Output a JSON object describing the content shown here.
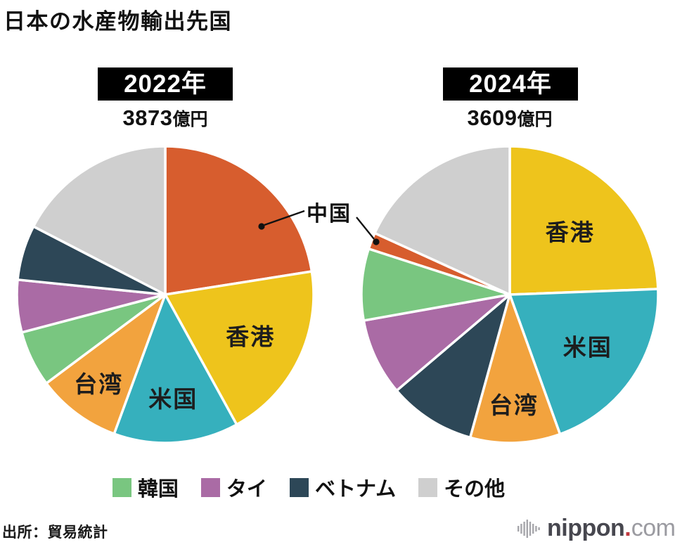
{
  "title": "日本の水産物輸出先国",
  "callout": {
    "label": "中国"
  },
  "chart_data": [
    {
      "type": "pie",
      "year_label": "2022年",
      "total_value": "3873",
      "total_unit": "億円",
      "start_angle_deg": 0,
      "direction": "clockwise",
      "slices": [
        {
          "label": "中国",
          "share_pct": 22.5,
          "color": "#d75d2e",
          "label_placement": "callout"
        },
        {
          "label": "香港",
          "share_pct": 19.5,
          "color": "#eec41c",
          "label_placement": "inside"
        },
        {
          "label": "米国",
          "share_pct": 13.6,
          "color": "#36b0bd",
          "label_placement": "inside"
        },
        {
          "label": "台湾",
          "share_pct": 9.2,
          "color": "#f2a33e",
          "label_placement": "inside"
        },
        {
          "label": "韓国",
          "share_pct": 6.1,
          "color": "#79c680",
          "label_placement": "legend"
        },
        {
          "label": "タイ",
          "share_pct": 5.7,
          "color": "#aa6ba5",
          "label_placement": "legend"
        },
        {
          "label": "ベトナム",
          "share_pct": 6.0,
          "color": "#2d4757",
          "label_placement": "legend"
        },
        {
          "label": "その他",
          "share_pct": 17.4,
          "color": "#cfcfcf",
          "label_placement": "legend"
        }
      ]
    },
    {
      "type": "pie",
      "year_label": "2024年",
      "total_value": "3609",
      "total_unit": "億円",
      "start_angle_deg": 0,
      "direction": "clockwise",
      "slices": [
        {
          "label": "香港",
          "share_pct": 24.4,
          "color": "#eec41c",
          "label_placement": "inside"
        },
        {
          "label": "米国",
          "share_pct": 20.1,
          "color": "#36b0bd",
          "label_placement": "inside"
        },
        {
          "label": "台湾",
          "share_pct": 9.8,
          "color": "#f2a33e",
          "label_placement": "inside"
        },
        {
          "label": "ベトナム",
          "share_pct": 9.5,
          "color": "#2d4757",
          "label_placement": "legend"
        },
        {
          "label": "タイ",
          "share_pct": 8.4,
          "color": "#aa6ba5",
          "label_placement": "legend"
        },
        {
          "label": "韓国",
          "share_pct": 7.8,
          "color": "#79c680",
          "label_placement": "legend"
        },
        {
          "label": "中国",
          "share_pct": 1.8,
          "color": "#d75d2e",
          "label_placement": "callout"
        },
        {
          "label": "その他",
          "share_pct": 18.2,
          "color": "#cfcfcf",
          "label_placement": "legend"
        }
      ]
    }
  ],
  "legend": {
    "items": [
      {
        "label": "韓国",
        "color": "#79c680"
      },
      {
        "label": "タイ",
        "color": "#aa6ba5"
      },
      {
        "label": "ベトナム",
        "color": "#2d4757"
      },
      {
        "label": "その他",
        "color": "#cfcfcf"
      }
    ]
  },
  "footer": {
    "source": "出所：貿易統計",
    "logo": {
      "brand": "nippon",
      "dot": ".",
      "tld": "com",
      "icon": "soundwave-icon",
      "dot_color": "#c0393f"
    }
  }
}
